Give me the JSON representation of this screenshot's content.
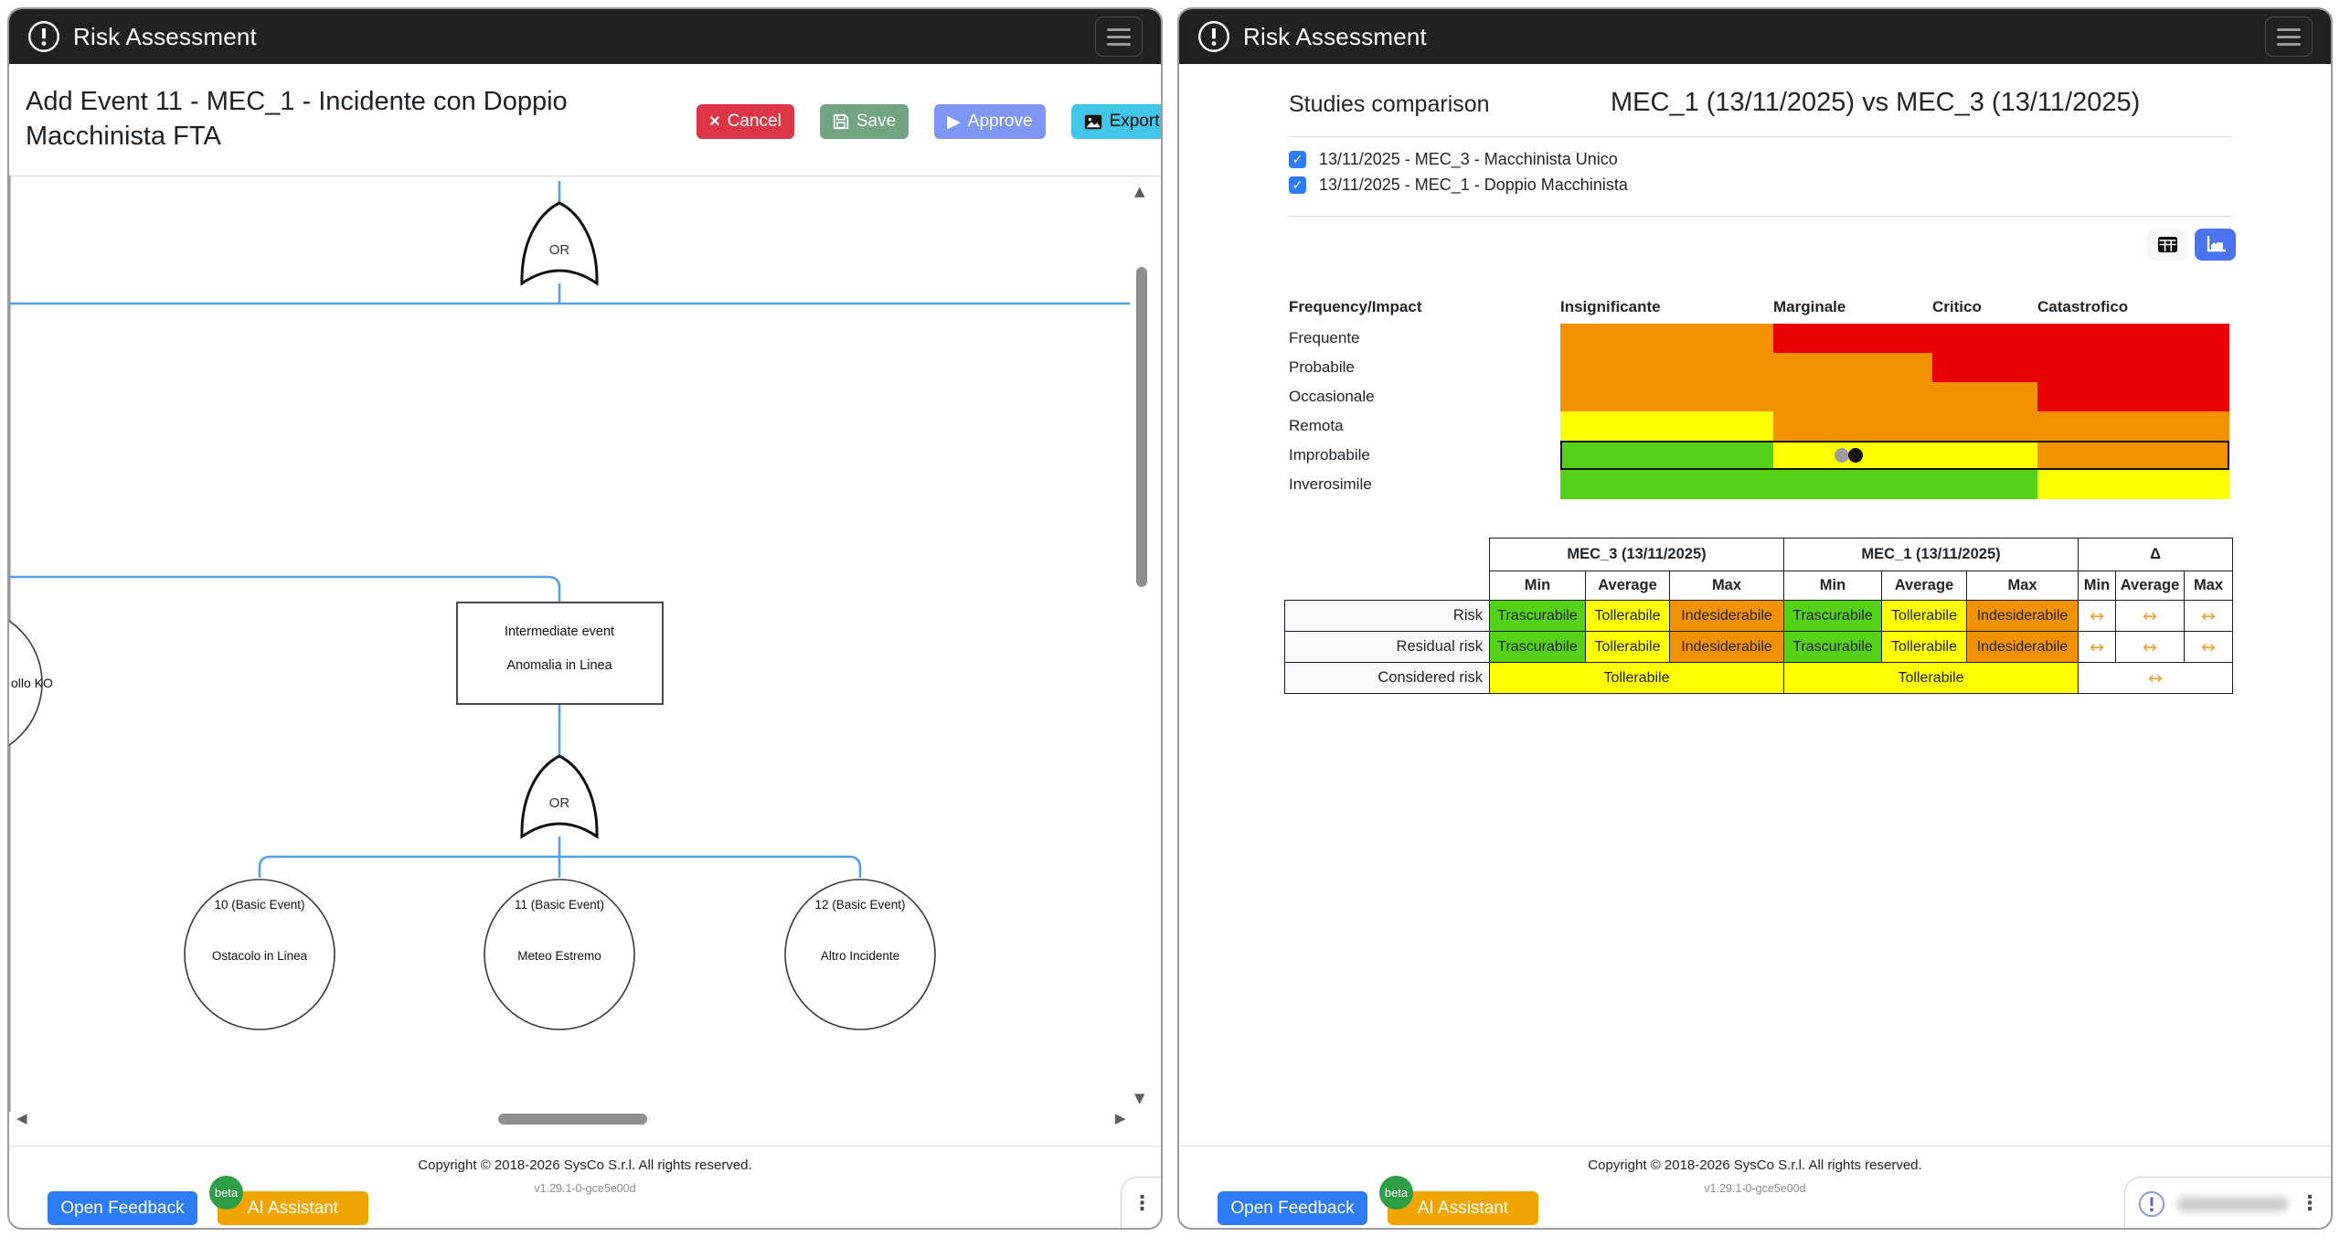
{
  "colors": {
    "green": "#55d117",
    "yellow": "#ffff00",
    "orange": "#f39200",
    "red": "#e90000",
    "arrow": "#f0a030",
    "value_colors": {
      "Trascurabile": "#55d117",
      "Tollerabile": "#ffff00",
      "Indesiderabile": "#f39200"
    }
  },
  "footer": {
    "copyright": "Copyright © 2018-2026 SysCo S.r.l. All rights reserved.",
    "version": "v1.29.1-0-gce5e00d",
    "open_feedback": "Open Feedback",
    "ai_assistant": "AI Assistant",
    "beta": "beta"
  },
  "left_window": {
    "header": {
      "title": "Risk Assessment"
    },
    "toolbar": {
      "title": "Add Event 11 - MEC_1 - Incidente con Doppio Macchinista FTA",
      "cancel": "Cancel",
      "save": "Save",
      "approve": "Approve",
      "export": "Export"
    },
    "tree": {
      "top_gate_label": "OR",
      "bottom_gate_label": "OR",
      "clipped_event_label": "ollo KO",
      "intermediate_event": {
        "type_label": "Intermediate event",
        "name": "Anomalia in Linea"
      },
      "basic_events": [
        {
          "id_label": "10 (Basic Event)",
          "name": "Ostacolo in Linea"
        },
        {
          "id_label": "11 (Basic Event)",
          "name": "Meteo Estremo"
        },
        {
          "id_label": "12 (Basic Event)",
          "name": "Altro Incidente"
        }
      ]
    }
  },
  "right_window": {
    "header": {
      "title": "Risk Assessment"
    },
    "comparison": {
      "section_title": "Studies comparison",
      "title": "MEC_1 (13/11/2025) vs MEC_3 (13/11/2025)",
      "studies": [
        {
          "label": "13/11/2025 - MEC_3 - Macchinista Unico",
          "checked": true
        },
        {
          "label": "13/11/2025 - MEC_1 - Doppio Macchinista",
          "checked": true
        }
      ]
    },
    "matrix": {
      "corner_label": "Frequency/Impact",
      "columns": [
        "Insignificante",
        "Marginale",
        "Critico",
        "Catastrofico"
      ],
      "rows": [
        "Frequente",
        "Probabile",
        "Occasionale",
        "Remota",
        "Improbabile",
        "Inverosimile"
      ],
      "cells": [
        [
          "orange",
          "red",
          "red",
          "red"
        ],
        [
          "orange",
          "orange",
          "red",
          "red"
        ],
        [
          "orange",
          "orange",
          "orange",
          "red"
        ],
        [
          "yellow",
          "orange",
          "orange",
          "orange"
        ],
        [
          "green",
          "yellow",
          "yellow",
          "orange"
        ],
        [
          "green",
          "green",
          "green",
          "yellow"
        ]
      ],
      "highlighted_row_index": 4,
      "markers": [
        {
          "name": "study-mec3-marker",
          "color": "#9e9e9e"
        },
        {
          "name": "study-mec1-marker",
          "color": "#141414"
        }
      ]
    },
    "table": {
      "groups": [
        "MEC_3 (13/11/2025)",
        "MEC_1 (13/11/2025)",
        "Δ"
      ],
      "sub_headers": [
        "Min",
        "Average",
        "Max"
      ],
      "rows": [
        {
          "label": "Risk",
          "merged": false,
          "mec3": [
            "Trascurabile",
            "Tollerabile",
            "Indesiderabile"
          ],
          "mec1": [
            "Trascurabile",
            "Tollerabile",
            "Indesiderabile"
          ],
          "delta": [
            "↔",
            "↔",
            "↔"
          ]
        },
        {
          "label": "Residual risk",
          "merged": false,
          "mec3": [
            "Trascurabile",
            "Tollerabile",
            "Indesiderabile"
          ],
          "mec1": [
            "Trascurabile",
            "Tollerabile",
            "Indesiderabile"
          ],
          "delta": [
            "↔",
            "↔",
            "↔"
          ]
        },
        {
          "label": "Considered risk",
          "merged": true,
          "mec3": [
            "Tollerabile"
          ],
          "mec1": [
            "Tollerabile"
          ],
          "delta": [
            "↔"
          ]
        }
      ]
    }
  }
}
